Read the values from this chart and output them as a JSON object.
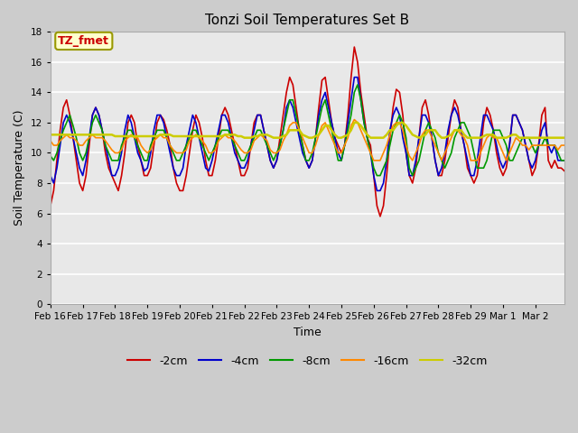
{
  "title": "Tonzi Soil Temperatures Set B",
  "xlabel": "Time",
  "ylabel": "Soil Temperature (C)",
  "ylim": [
    0,
    18
  ],
  "yticks": [
    0,
    2,
    4,
    6,
    8,
    10,
    12,
    14,
    16,
    18
  ],
  "annotation_text": "TZ_fmet",
  "annotation_color": "#cc0000",
  "annotation_bg": "#ffffcc",
  "annotation_border": "#999900",
  "x_labels": [
    "Feb 16",
    "Feb 17",
    "Feb 18",
    "Feb 19",
    "Feb 20",
    "Feb 21",
    "Feb 22",
    "Feb 23",
    "Feb 24",
    "Feb 25",
    "Feb 26",
    "Feb 27",
    "Feb 28",
    "Feb 29",
    "Mar 1",
    "Mar 2"
  ],
  "series_order": [
    "-2cm",
    "-4cm",
    "-8cm",
    "-16cm",
    "-32cm"
  ],
  "series": {
    "-2cm": {
      "color": "#cc0000",
      "lw": 1.2
    },
    "-4cm": {
      "color": "#0000cc",
      "lw": 1.2
    },
    "-8cm": {
      "color": "#009900",
      "lw": 1.2
    },
    "-16cm": {
      "color": "#ff8800",
      "lw": 1.2
    },
    "-32cm": {
      "color": "#cccc00",
      "lw": 1.8
    }
  },
  "n_points": 160,
  "x_tick_positions": [
    0,
    10,
    20,
    30,
    40,
    50,
    60,
    70,
    80,
    90,
    100,
    110,
    120,
    130,
    140,
    150
  ],
  "data_2cm": [
    6.5,
    7.5,
    9.5,
    11.5,
    13.0,
    13.5,
    12.5,
    11.0,
    9.5,
    8.0,
    7.5,
    8.5,
    10.5,
    12.5,
    13.0,
    12.5,
    11.5,
    10.0,
    9.0,
    8.5,
    8.0,
    7.5,
    8.5,
    10.0,
    12.0,
    12.5,
    12.0,
    10.5,
    9.5,
    8.5,
    8.5,
    9.0,
    10.5,
    12.0,
    12.5,
    12.2,
    11.5,
    10.5,
    9.0,
    8.0,
    7.5,
    7.5,
    8.5,
    10.0,
    11.5,
    12.5,
    12.0,
    11.0,
    9.5,
    8.5,
    8.5,
    9.5,
    11.0,
    12.5,
    13.0,
    12.5,
    11.5,
    10.5,
    9.5,
    8.5,
    8.5,
    9.0,
    10.5,
    12.0,
    12.5,
    12.5,
    11.5,
    10.5,
    9.5,
    9.0,
    9.5,
    11.0,
    12.5,
    14.0,
    15.0,
    14.5,
    13.0,
    11.5,
    10.5,
    9.5,
    9.0,
    9.5,
    11.0,
    13.0,
    14.8,
    15.0,
    13.5,
    12.0,
    11.0,
    10.5,
    10.0,
    10.5,
    12.5,
    15.0,
    17.0,
    16.0,
    14.0,
    12.5,
    11.0,
    10.5,
    8.5,
    6.5,
    5.8,
    6.5,
    8.5,
    11.0,
    13.0,
    14.2,
    14.0,
    12.5,
    10.0,
    8.5,
    8.0,
    9.0,
    11.0,
    13.0,
    13.5,
    12.5,
    11.0,
    9.5,
    8.5,
    8.5,
    9.5,
    11.0,
    12.5,
    13.5,
    13.0,
    11.5,
    10.5,
    9.0,
    8.5,
    8.0,
    8.5,
    10.0,
    12.0,
    13.0,
    12.5,
    11.5,
    10.0,
    9.0,
    8.5,
    9.0,
    10.5,
    12.5,
    12.5,
    12.0,
    11.5,
    10.5,
    9.5,
    8.5,
    9.0,
    10.5,
    12.5,
    13.0,
    9.5,
    9.0,
    9.5,
    9.0,
    9.0,
    8.8
  ],
  "data_4cm": [
    8.5,
    8.0,
    9.0,
    10.5,
    12.0,
    12.5,
    12.0,
    11.0,
    10.0,
    9.0,
    8.5,
    9.5,
    11.0,
    12.5,
    13.0,
    12.5,
    11.5,
    10.5,
    9.5,
    8.5,
    8.5,
    9.0,
    10.0,
    11.5,
    12.5,
    12.0,
    11.0,
    10.0,
    9.5,
    8.8,
    9.0,
    10.0,
    11.5,
    12.5,
    12.5,
    12.0,
    11.0,
    10.0,
    9.0,
    8.5,
    8.5,
    9.0,
    10.5,
    11.5,
    12.5,
    12.0,
    11.0,
    10.0,
    9.0,
    8.8,
    9.5,
    10.5,
    11.5,
    12.5,
    12.5,
    12.0,
    11.0,
    10.0,
    9.5,
    9.0,
    9.0,
    9.5,
    10.5,
    11.5,
    12.5,
    12.5,
    11.5,
    10.5,
    9.5,
    9.0,
    9.5,
    10.5,
    11.5,
    13.0,
    13.5,
    13.0,
    12.0,
    11.0,
    10.0,
    9.5,
    9.0,
    9.5,
    11.0,
    12.5,
    13.5,
    14.0,
    13.0,
    12.0,
    11.0,
    10.0,
    9.5,
    10.5,
    12.0,
    13.5,
    15.0,
    15.0,
    13.5,
    12.0,
    11.0,
    10.0,
    8.5,
    7.5,
    7.5,
    8.0,
    9.5,
    11.5,
    12.5,
    13.0,
    12.5,
    11.0,
    10.0,
    8.5,
    8.5,
    9.5,
    11.0,
    12.5,
    12.5,
    12.0,
    11.0,
    9.5,
    8.5,
    9.0,
    10.0,
    11.5,
    12.5,
    13.0,
    12.5,
    11.5,
    10.5,
    9.5,
    8.5,
    8.5,
    9.5,
    11.0,
    12.5,
    12.5,
    12.0,
    11.5,
    10.5,
    9.5,
    9.0,
    9.5,
    10.5,
    12.5,
    12.5,
    12.0,
    11.5,
    10.5,
    9.5,
    9.0,
    9.5,
    10.5,
    11.5,
    12.0,
    10.5,
    10.0,
    10.5,
    9.5,
    9.5,
    9.5
  ],
  "data_8cm": [
    9.8,
    9.5,
    10.0,
    10.8,
    11.5,
    12.0,
    12.5,
    11.8,
    11.0,
    10.0,
    9.5,
    10.0,
    11.0,
    12.0,
    12.5,
    12.0,
    11.5,
    10.5,
    10.0,
    9.5,
    9.5,
    9.5,
    10.5,
    11.0,
    11.5,
    11.5,
    11.0,
    10.5,
    10.0,
    9.5,
    9.5,
    10.5,
    11.0,
    11.5,
    11.5,
    11.5,
    11.0,
    10.5,
    10.0,
    9.5,
    9.5,
    10.0,
    10.5,
    11.0,
    11.5,
    11.5,
    11.0,
    10.5,
    10.0,
    9.5,
    10.0,
    10.5,
    11.0,
    11.5,
    11.5,
    11.5,
    11.0,
    10.5,
    10.0,
    9.5,
    9.5,
    10.0,
    10.5,
    11.0,
    11.5,
    11.5,
    11.0,
    10.5,
    10.0,
    9.5,
    10.0,
    10.5,
    11.5,
    12.5,
    13.5,
    13.5,
    12.5,
    11.5,
    10.5,
    9.5,
    9.5,
    10.0,
    11.0,
    12.0,
    13.0,
    13.5,
    12.5,
    11.5,
    10.5,
    9.5,
    9.5,
    10.5,
    11.5,
    12.5,
    14.0,
    14.5,
    13.5,
    12.0,
    11.0,
    10.0,
    9.0,
    8.5,
    8.5,
    9.0,
    9.5,
    10.5,
    11.5,
    12.0,
    12.5,
    12.0,
    11.0,
    9.0,
    8.5,
    9.0,
    9.5,
    10.5,
    11.5,
    12.0,
    11.5,
    11.0,
    10.0,
    9.5,
    9.0,
    9.5,
    10.0,
    11.0,
    11.5,
    12.0,
    12.0,
    11.5,
    11.0,
    10.0,
    9.0,
    9.0,
    9.0,
    9.5,
    10.5,
    11.5,
    11.5,
    11.5,
    11.0,
    10.5,
    9.5,
    9.5,
    10.0,
    10.5,
    11.0,
    11.0,
    11.0,
    10.5,
    10.0,
    10.5,
    10.5,
    11.0,
    10.5,
    10.5,
    10.5,
    10.0,
    9.5,
    9.5
  ],
  "data_16cm": [
    10.8,
    10.5,
    10.5,
    10.8,
    11.0,
    11.2,
    11.0,
    11.0,
    10.8,
    10.5,
    10.5,
    10.8,
    11.0,
    11.2,
    11.0,
    11.0,
    11.0,
    10.8,
    10.5,
    10.2,
    10.0,
    10.0,
    10.2,
    10.8,
    11.0,
    11.2,
    11.0,
    11.0,
    10.5,
    10.2,
    10.0,
    10.2,
    10.8,
    11.0,
    11.2,
    11.0,
    11.0,
    10.5,
    10.2,
    10.0,
    10.0,
    10.0,
    10.2,
    10.8,
    11.0,
    11.2,
    11.0,
    10.8,
    10.5,
    10.0,
    10.0,
    10.2,
    10.8,
    11.0,
    11.2,
    11.0,
    11.0,
    10.8,
    10.5,
    10.2,
    10.0,
    10.0,
    10.2,
    10.8,
    11.0,
    11.2,
    11.0,
    10.8,
    10.2,
    10.0,
    10.0,
    10.2,
    10.8,
    11.2,
    11.8,
    12.0,
    12.0,
    11.5,
    11.0,
    10.5,
    10.0,
    10.0,
    10.5,
    11.2,
    11.8,
    12.0,
    11.5,
    11.0,
    10.5,
    10.0,
    10.0,
    10.5,
    11.0,
    11.8,
    12.2,
    12.0,
    11.5,
    11.0,
    10.5,
    10.0,
    9.5,
    9.5,
    9.5,
    10.0,
    10.5,
    11.2,
    11.8,
    12.0,
    12.0,
    11.5,
    10.5,
    9.8,
    9.5,
    10.0,
    10.5,
    11.2,
    11.5,
    11.5,
    11.0,
    10.5,
    10.0,
    9.5,
    10.0,
    10.5,
    11.0,
    11.5,
    11.5,
    11.2,
    11.0,
    10.5,
    9.5,
    9.5,
    9.5,
    10.0,
    10.5,
    11.0,
    11.2,
    11.0,
    11.0,
    10.5,
    10.0,
    9.5,
    10.0,
    10.5,
    11.0,
    10.8,
    10.5,
    10.5,
    10.2,
    10.5,
    10.5,
    10.5,
    10.5,
    10.5,
    10.5,
    10.5,
    10.5,
    10.2,
    10.5,
    10.5
  ],
  "data_32cm": [
    11.2,
    11.2,
    11.2,
    11.2,
    11.2,
    11.2,
    11.2,
    11.2,
    11.2,
    11.2,
    11.2,
    11.2,
    11.2,
    11.2,
    11.2,
    11.2,
    11.2,
    11.2,
    11.2,
    11.2,
    11.1,
    11.1,
    11.1,
    11.1,
    11.1,
    11.1,
    11.1,
    11.1,
    11.1,
    11.1,
    11.1,
    11.1,
    11.1,
    11.1,
    11.2,
    11.2,
    11.2,
    11.2,
    11.1,
    11.1,
    11.1,
    11.1,
    11.1,
    11.1,
    11.1,
    11.1,
    11.1,
    11.1,
    11.1,
    11.1,
    11.1,
    11.1,
    11.1,
    11.1,
    11.2,
    11.2,
    11.2,
    11.2,
    11.1,
    11.1,
    11.0,
    11.0,
    11.0,
    11.1,
    11.1,
    11.2,
    11.2,
    11.2,
    11.1,
    11.0,
    11.0,
    11.0,
    11.1,
    11.2,
    11.5,
    11.5,
    11.5,
    11.5,
    11.2,
    11.1,
    11.0,
    11.0,
    11.1,
    11.2,
    11.5,
    11.8,
    11.8,
    11.5,
    11.2,
    11.0,
    11.0,
    11.1,
    11.2,
    11.5,
    12.0,
    12.0,
    11.8,
    11.5,
    11.2,
    11.0,
    11.0,
    11.0,
    11.0,
    11.0,
    11.2,
    11.5,
    11.5,
    11.8,
    12.0,
    12.0,
    11.8,
    11.5,
    11.2,
    11.1,
    11.0,
    11.1,
    11.2,
    11.5,
    11.5,
    11.5,
    11.2,
    11.0,
    11.0,
    11.1,
    11.2,
    11.5,
    11.5,
    11.5,
    11.2,
    11.0,
    11.0,
    11.0,
    11.0,
    11.0,
    11.1,
    11.2,
    11.2,
    11.2,
    11.0,
    11.0,
    11.0,
    11.0,
    11.1,
    11.2,
    11.2,
    11.0,
    11.0,
    11.0,
    11.0,
    11.0,
    11.0,
    11.0,
    11.0,
    11.0,
    11.0,
    11.0,
    11.0,
    11.0,
    11.0,
    11.0
  ]
}
